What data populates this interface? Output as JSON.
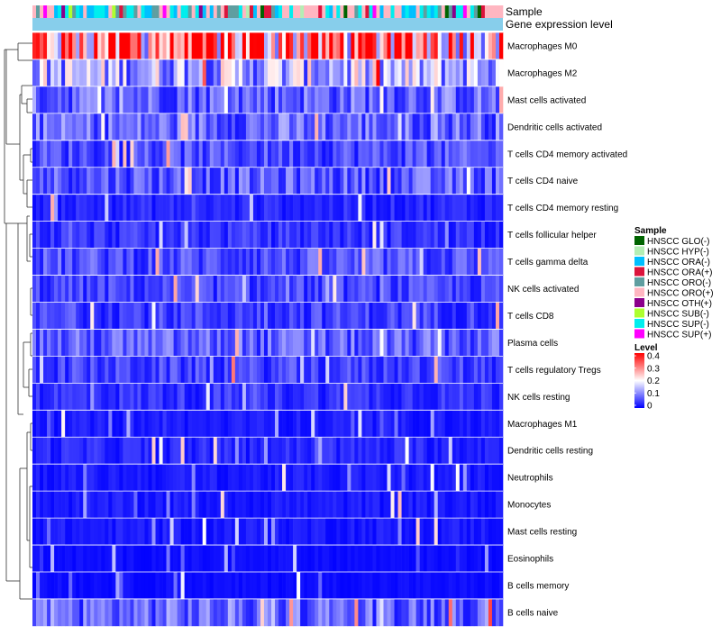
{
  "chart_data": {
    "type": "heatmap",
    "title": "",
    "column_annotations": [
      {
        "name": "Sample",
        "kind": "categorical"
      },
      {
        "name": "Gene expression level",
        "kind": "constant",
        "color": "#87ceeb"
      }
    ],
    "rows": [
      {
        "label": "Macrophages M0",
        "mean": 0.3
      },
      {
        "label": "Macrophages M2",
        "mean": 0.14
      },
      {
        "label": "Mast cells activated",
        "mean": 0.08
      },
      {
        "label": "Dendritic cells activated",
        "mean": 0.08
      },
      {
        "label": "T cells CD4 memory activated",
        "mean": 0.06
      },
      {
        "label": "T cells CD4 naive",
        "mean": 0.07
      },
      {
        "label": "T cells CD4 memory resting",
        "mean": 0.03
      },
      {
        "label": "T cells follicular helper",
        "mean": 0.04
      },
      {
        "label": "T cells gamma delta",
        "mean": 0.06
      },
      {
        "label": "NK cells activated",
        "mean": 0.05
      },
      {
        "label": "T cells CD8",
        "mean": 0.05
      },
      {
        "label": "Plasma cells",
        "mean": 0.07
      },
      {
        "label": "T cells regulatory  Tregs",
        "mean": 0.05
      },
      {
        "label": "NK cells resting",
        "mean": 0.04
      },
      {
        "label": "Macrophages M1",
        "mean": 0.02
      },
      {
        "label": "Dendritic cells resting",
        "mean": 0.03
      },
      {
        "label": "Neutrophils",
        "mean": 0.02
      },
      {
        "label": "Monocytes",
        "mean": 0.02
      },
      {
        "label": "Mast cells resting",
        "mean": 0.02
      },
      {
        "label": "Eosinophils",
        "mean": 0.01
      },
      {
        "label": "B cells memory",
        "mean": 0.01
      },
      {
        "label": "B cells naive",
        "mean": 0.08
      }
    ],
    "n_columns": 130,
    "color_scale": {
      "name": "Level",
      "min": 0,
      "max": 0.4,
      "stops": [
        {
          "value": 0,
          "color": "#0000ff"
        },
        {
          "value": 0.2,
          "color": "#ffffff"
        },
        {
          "value": 0.4,
          "color": "#ff0000"
        }
      ],
      "ticks": [
        "0.4",
        "0.3",
        "0.2",
        "0.1",
        "0"
      ]
    },
    "sample_legend": {
      "title": "Sample",
      "items": [
        {
          "label": "HNSCC GLO(-)",
          "color": "#006400"
        },
        {
          "label": "HNSCC HYP(-)",
          "color": "#b4eeb4"
        },
        {
          "label": "HNSCC ORA(-)",
          "color": "#00bfff"
        },
        {
          "label": "HNSCC ORA(+)",
          "color": "#dc143c"
        },
        {
          "label": "HNSCC ORO(-)",
          "color": "#5f9ea0"
        },
        {
          "label": "HNSCC ORO(+)",
          "color": "#ffb6c1"
        },
        {
          "label": "HNSCC OTH(+)",
          "color": "#8b008b"
        },
        {
          "label": "HNSCC SUB(-)",
          "color": "#adff2f"
        },
        {
          "label": "HNSCC SUP(-)",
          "color": "#00eeee"
        },
        {
          "label": "HNSCC SUP(+)",
          "color": "#ff00ff"
        }
      ]
    }
  }
}
